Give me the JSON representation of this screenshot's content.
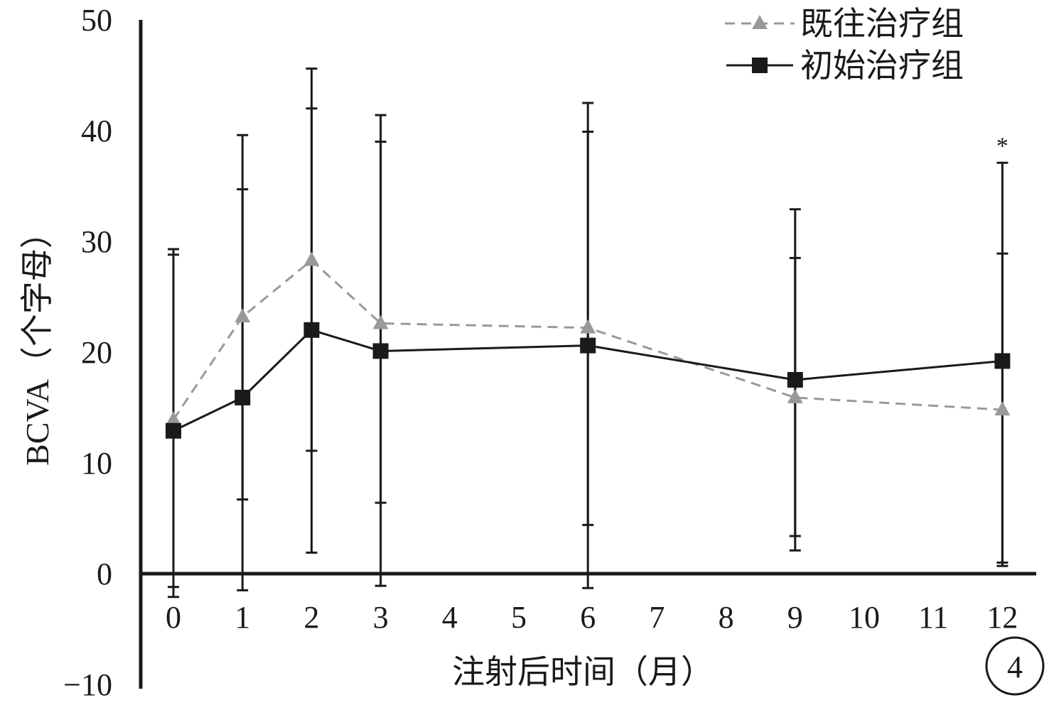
{
  "chart_data": {
    "type": "line",
    "title": "",
    "xlabel": "注射后时间（月）",
    "ylabel": "BCVA（个字母）",
    "xlim": [
      -0.45,
      12.45
    ],
    "ylim": [
      -10,
      50
    ],
    "yticks": [
      -10,
      0,
      10,
      20,
      30,
      40,
      50
    ],
    "xticks": [
      0,
      1,
      2,
      3,
      4,
      5,
      6,
      7,
      8,
      9,
      10,
      11,
      12
    ],
    "grid": false,
    "legend": "top-right",
    "panel_label": "4",
    "significance_marker": {
      "x": 12,
      "y": 38.8,
      "text": "*"
    },
    "series": [
      {
        "name": "既往治疗组",
        "color": "#999999",
        "line_style": "dashed",
        "marker": "triangle",
        "x": [
          0,
          1,
          2,
          3,
          6,
          9,
          12
        ],
        "y": [
          13.9,
          23.2,
          28.3,
          22.6,
          22.2,
          15.9,
          14.8
        ],
        "err_low": [
          -1.2,
          6.7,
          11.1,
          6.4,
          4.4,
          3.4,
          1.0
        ],
        "err_high": [
          29.3,
          39.6,
          45.6,
          41.4,
          42.5,
          32.9,
          37.1
        ]
      },
      {
        "name": "初始治疗组",
        "color": "#1a1a1a",
        "line_style": "solid",
        "marker": "square",
        "x": [
          0,
          1,
          2,
          3,
          6,
          9,
          12
        ],
        "y": [
          12.9,
          15.9,
          22.0,
          20.1,
          20.6,
          17.5,
          19.2
        ],
        "err_low": [
          -2.1,
          -1.5,
          1.9,
          -1.1,
          -1.3,
          2.1,
          0.7
        ],
        "err_high": [
          28.8,
          34.7,
          42.0,
          39.0,
          39.9,
          28.5,
          28.9
        ]
      }
    ]
  },
  "colors": {
    "axis": "#1a1a1a",
    "background": "#ffffff"
  }
}
